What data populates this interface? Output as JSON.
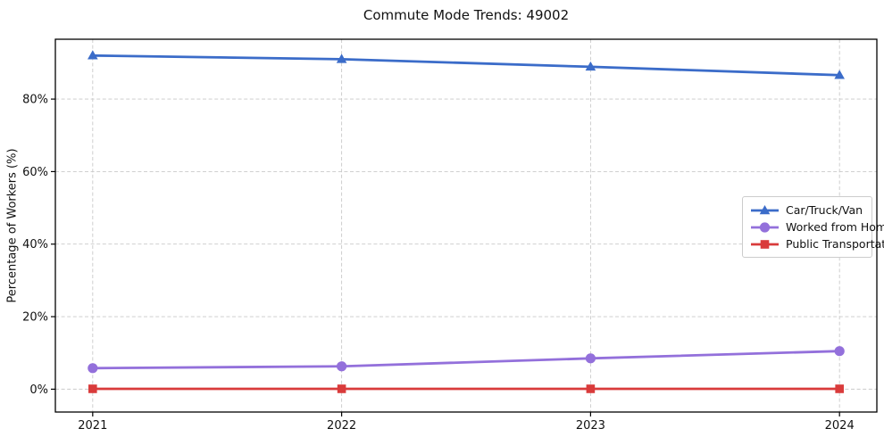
{
  "chart_data": {
    "type": "line",
    "title": "Commute Mode Trends: 49002",
    "xlabel": "",
    "ylabel": "Percentage of Workers (%)",
    "x": [
      2021,
      2022,
      2023,
      2024
    ],
    "series": [
      {
        "name": "Car/Truck/Van",
        "color": "#3b6cc9",
        "marker": "triangle",
        "values": [
          92.0,
          91.0,
          88.9,
          86.6
        ]
      },
      {
        "name": "Worked from Home",
        "color": "#9370DB",
        "marker": "circle",
        "values": [
          5.8,
          6.3,
          8.5,
          10.5
        ]
      },
      {
        "name": "Public Transportation",
        "color": "#d93b3b",
        "marker": "square",
        "values": [
          0.1,
          0.1,
          0.1,
          0.1
        ]
      }
    ],
    "yticks": [
      0,
      20,
      40,
      60,
      80
    ],
    "ytick_labels": [
      "0%",
      "20%",
      "40%",
      "60%",
      "80%"
    ],
    "xtick_labels": [
      "2021",
      "2022",
      "2023",
      "2024"
    ],
    "xlim": [
      2020.85,
      2024.15
    ],
    "ylim": [
      -6.3,
      96.5
    ],
    "grid": true,
    "grid_style": "dashed",
    "legend_position": "center-right",
    "background_color": "#ffffff"
  }
}
